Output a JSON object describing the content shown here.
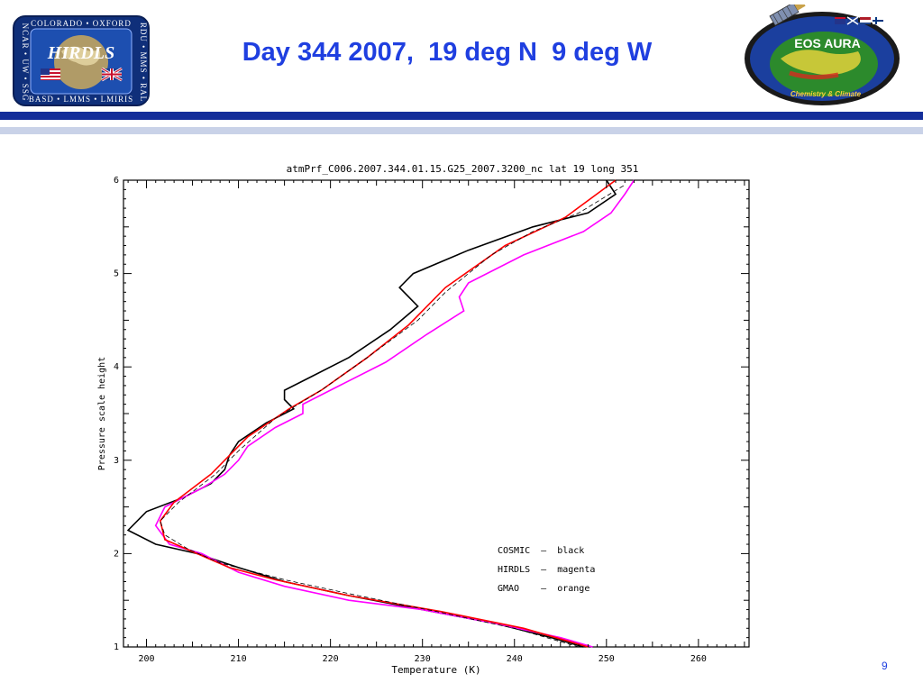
{
  "header": {
    "title": "Day 344 2007,  19 deg N  9 deg W",
    "left_logo": {
      "name": "HIRDLS",
      "top_text": "COLORADO • OXFORD",
      "bottom_text": "BASD • LMMS • LMIRIS",
      "left_side_text": "NCAR • UW • SSG",
      "right_side_text": "RDU • MMS • RAL",
      "icons": [
        "globe-icon",
        "us-flag-icon",
        "uk-flag-icon"
      ]
    },
    "right_logo": {
      "name": "EOS AURA",
      "subtitle": "Chemistry & Climate",
      "icons": [
        "satellite-icon",
        "globe-icon",
        "flag-icon"
      ]
    }
  },
  "colors": {
    "title": "#1f3fe0",
    "header_rule": "#142e9a",
    "header_rule_light": "#c9d2e8",
    "cosmic": "#000000",
    "hirdls": "#ff00ff",
    "gmao": "#ff0000"
  },
  "chart_data": {
    "type": "line",
    "title": "atmPrf_C006.2007.344.01.15.G25_2007.3200_nc     lat  19  long  351",
    "xlabel": "Temperature (K)",
    "ylabel": "Pressure scale height",
    "xlim": [
      197.5,
      265.5
    ],
    "ylim": [
      1,
      6
    ],
    "xticks": [
      200,
      210,
      220,
      230,
      240,
      250,
      260
    ],
    "yticks": [
      1,
      2,
      3,
      4,
      5,
      6
    ],
    "grid": false,
    "legend": {
      "position": "lower-right",
      "entries": [
        "COSMIC  –  black",
        "HIRDLS  –  magenta",
        "GMAO    –  orange"
      ]
    },
    "series": [
      {
        "name": "COSMIC",
        "color": "#000000",
        "style": "solid",
        "x": [
          247.5,
          244.0,
          238.0,
          230.0,
          222.0,
          215.0,
          210.0,
          205.5,
          201.0,
          198.0,
          200.0,
          204.0,
          207.0,
          208.5,
          209.0,
          210.0,
          213.0,
          216.0,
          215.0,
          215.0,
          218.0,
          222.0,
          226.5,
          229.5,
          227.5,
          229.0,
          235.0,
          242.0,
          248.0,
          251.0,
          250.0
        ],
        "y": [
          1.0,
          1.1,
          1.25,
          1.4,
          1.55,
          1.7,
          1.85,
          2.0,
          2.1,
          2.25,
          2.45,
          2.6,
          2.75,
          2.9,
          3.05,
          3.2,
          3.4,
          3.55,
          3.65,
          3.75,
          3.9,
          4.1,
          4.4,
          4.65,
          4.85,
          5.0,
          5.25,
          5.5,
          5.65,
          5.85,
          6.0
        ]
      },
      {
        "name": "HIRDLS",
        "color": "#ff00ff",
        "style": "solid",
        "x": [
          248.5,
          245.0,
          238.0,
          230.0,
          222.0,
          215.0,
          210.0,
          206.0,
          202.5,
          201.0,
          202.0,
          206.0,
          208.5,
          210.0,
          211.0,
          214.0,
          217.0,
          217.0,
          221.0,
          226.0,
          230.5,
          234.5,
          234.0,
          235.0,
          241.0,
          247.5,
          250.5,
          252.0,
          253.0
        ],
        "y": [
          1.0,
          1.1,
          1.25,
          1.4,
          1.5,
          1.65,
          1.8,
          2.0,
          2.1,
          2.3,
          2.5,
          2.7,
          2.85,
          3.0,
          3.15,
          3.35,
          3.5,
          3.6,
          3.8,
          4.05,
          4.35,
          4.6,
          4.75,
          4.9,
          5.2,
          5.45,
          5.65,
          5.85,
          6.0
        ]
      },
      {
        "name": "GMAO",
        "color": "#ff0000",
        "style": "solid",
        "x": [
          248.0,
          241.0,
          232.0,
          222.0,
          214.0,
          209.0,
          205.5,
          202.0,
          201.5,
          203.0,
          207.0,
          211.0,
          215.5,
          219.0,
          224.0,
          228.5,
          232.5,
          239.0,
          245.5,
          251.0
        ],
        "y": [
          1.0,
          1.2,
          1.38,
          1.55,
          1.72,
          1.85,
          2.0,
          2.15,
          2.35,
          2.55,
          2.85,
          3.25,
          3.55,
          3.75,
          4.1,
          4.45,
          4.85,
          5.3,
          5.6,
          6.0
        ]
      },
      {
        "name": "",
        "color": "#000000",
        "style": "dashed",
        "x": [
          247.0,
          240.0,
          232.0,
          223.0,
          215.0,
          208.0,
          204.5,
          202.0,
          201.5,
          203.5,
          207.5,
          210.0,
          214.0,
          219.0,
          224.0,
          229.5,
          232.5,
          237.5,
          242.0,
          247.0,
          252.0
        ],
        "y": [
          1.0,
          1.2,
          1.37,
          1.55,
          1.72,
          1.9,
          2.05,
          2.2,
          2.35,
          2.55,
          2.85,
          3.1,
          3.45,
          3.75,
          4.1,
          4.5,
          4.8,
          5.2,
          5.45,
          5.65,
          5.95
        ]
      }
    ]
  },
  "footer": {
    "slide_number": "9"
  }
}
